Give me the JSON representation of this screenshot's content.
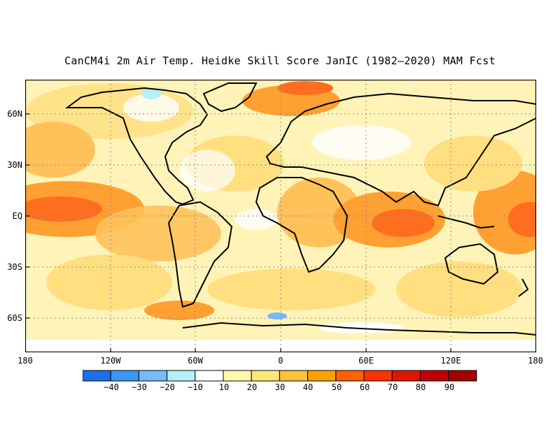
{
  "title": "CanCM4i 2m Air Temp. Heidke Skill Score JanIC (1982–2020) MAM Fcst",
  "map": {
    "lat_labels": [
      "60N",
      "30N",
      "EQ",
      "30S",
      "60S"
    ],
    "lon_labels": [
      "180",
      "120W",
      "60W",
      "0",
      "60E",
      "120E",
      "180"
    ]
  },
  "colorbar": {
    "tick_labels": [
      "−40",
      "−30",
      "−20",
      "−10",
      "10",
      "20",
      "30",
      "40",
      "50",
      "60",
      "70",
      "80",
      "90"
    ],
    "colors": [
      "#1e6eeb",
      "#3c96f5",
      "#78b9fa",
      "#b4f0fa",
      "#ffffff",
      "#fffaaa",
      "#ffe878",
      "#ffc03c",
      "#ffa000",
      "#ff6000",
      "#ff3200",
      "#e11400",
      "#c00000",
      "#a50000"
    ]
  }
}
